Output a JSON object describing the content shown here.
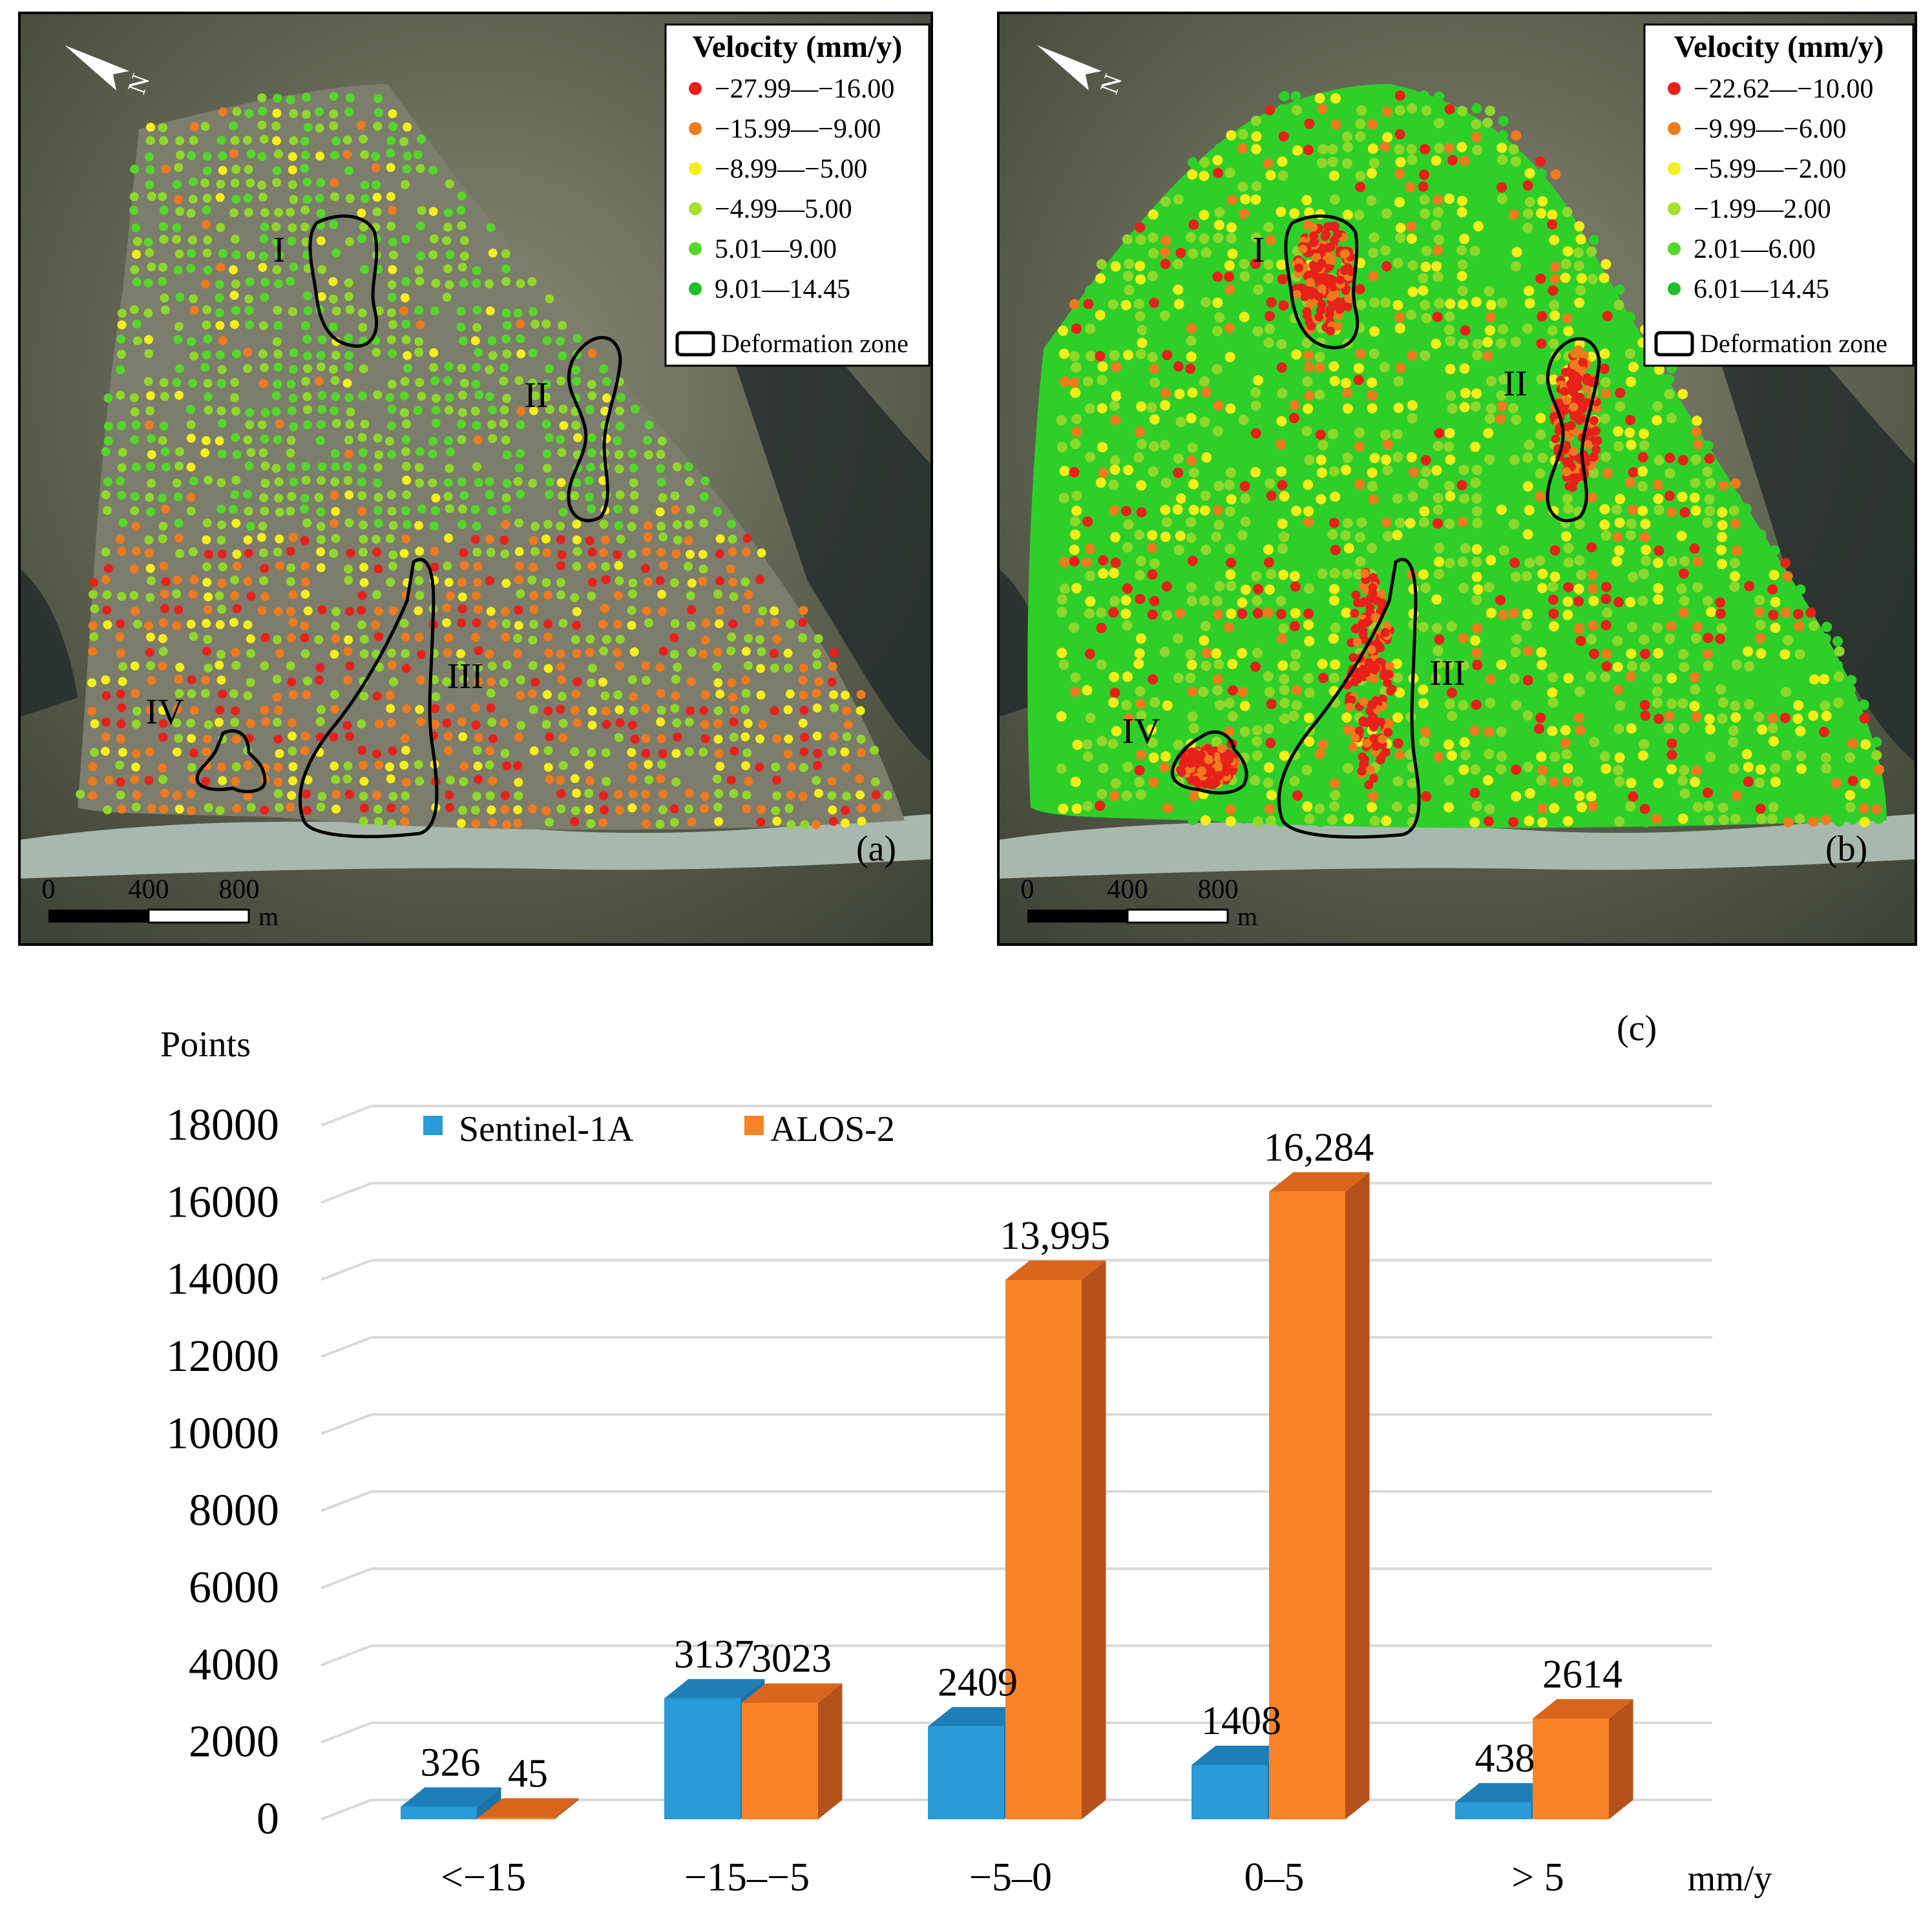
{
  "maps": [
    {
      "panel_label": "(a)",
      "legend": {
        "title": "Velocity (mm/y)",
        "entries": [
          {
            "label": "−27.99—−16.00",
            "color": "#e8201a"
          },
          {
            "label": "−15.99—−9.00",
            "color": "#f07a1e"
          },
          {
            "label": "−8.99—−5.00",
            "color": "#f5ee1a"
          },
          {
            "label": "−4.99—5.00",
            "color": "#a6e02a"
          },
          {
            "label": "5.01—9.00",
            "color": "#55d62a"
          },
          {
            "label": "9.01—14.45",
            "color": "#1fbf2a"
          }
        ],
        "zone_label": "Deformation zone"
      },
      "zones": [
        "I",
        "II",
        "III",
        "IV"
      ],
      "north": "N",
      "scale": {
        "ticks": [
          "0",
          "400",
          "800"
        ],
        "unit": "m"
      }
    },
    {
      "panel_label": "(b)",
      "legend": {
        "title": "Velocity (mm/y)",
        "entries": [
          {
            "label": "−22.62—−10.00",
            "color": "#e8201a"
          },
          {
            "label": "−9.99—−6.00",
            "color": "#f07a1e"
          },
          {
            "label": "−5.99—−2.00",
            "color": "#f5ee1a"
          },
          {
            "label": "−1.99—2.00",
            "color": "#a6e02a"
          },
          {
            "label": "2.01—6.00",
            "color": "#55d62a"
          },
          {
            "label": "6.01—14.45",
            "color": "#1fbf2a"
          }
        ],
        "zone_label": "Deformation zone"
      },
      "zones": [
        "I",
        "II",
        "III",
        "IV"
      ],
      "north": "N",
      "scale": {
        "ticks": [
          "0",
          "400",
          "800"
        ],
        "unit": "m"
      }
    }
  ],
  "chart_data": {
    "type": "bar",
    "panel_label": "(c)",
    "ylabel": "Points",
    "xlabel": "mm/y",
    "categories": [
      "<−15",
      "−15–−5",
      "−5–0",
      "0–5",
      "> 5"
    ],
    "series": [
      {
        "name": "Sentinel-1A",
        "values": [
          326,
          3137,
          2409,
          1408,
          438
        ],
        "labels": [
          "326",
          "3137",
          "2409",
          "1408",
          "438"
        ],
        "color": "#2a9ad8",
        "side": "#1b73a6",
        "top": "#1e7fb8"
      },
      {
        "name": "ALOS-2",
        "values": [
          45,
          3023,
          13995,
          16284,
          2614
        ],
        "labels": [
          "45",
          "3023",
          "13,995",
          "16,284",
          "2614"
        ],
        "color": "#f98324",
        "side": "#b5521b",
        "top": "#d8661c"
      }
    ],
    "yticks": [
      0,
      2000,
      4000,
      6000,
      8000,
      10000,
      12000,
      14000,
      16000,
      18000
    ],
    "ylim": [
      0,
      18000
    ],
    "grid": true,
    "legend_position": "top-left"
  }
}
